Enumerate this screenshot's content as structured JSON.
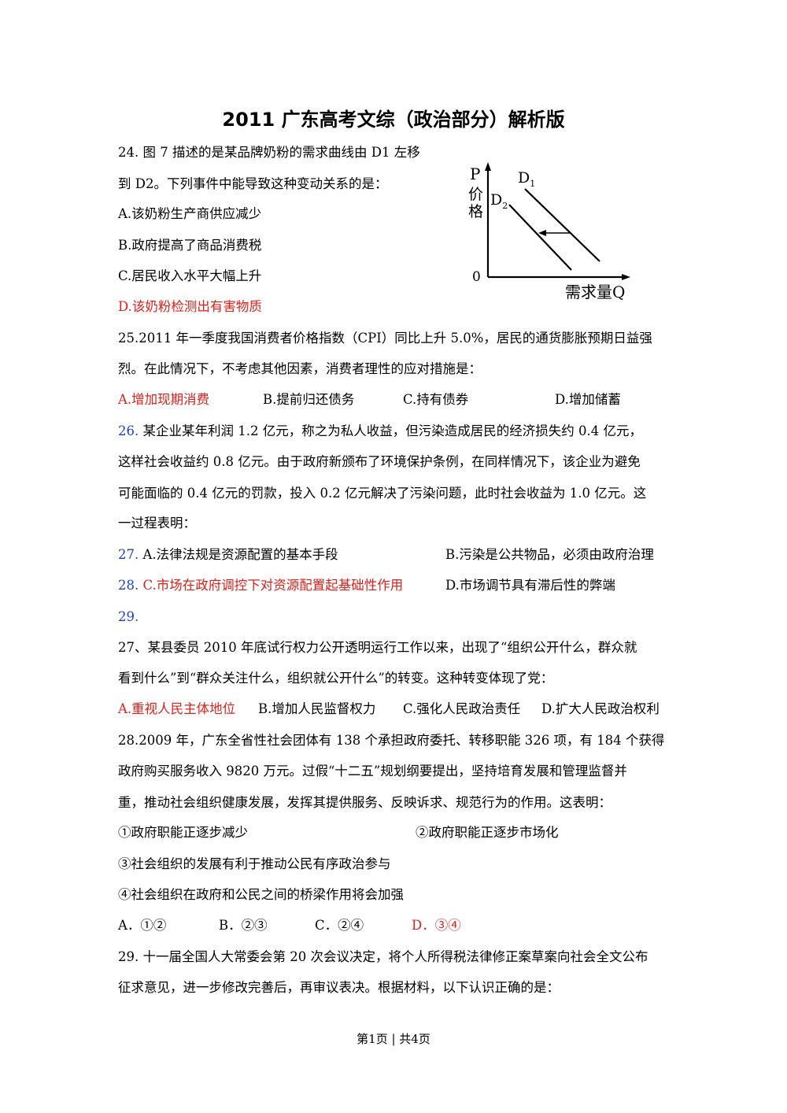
{
  "title": "2011 广东高考文综（政治部分）解析版",
  "q24": {
    "stem1": "24.   图 7 描述的是某品牌奶粉的需求曲线由 D1 左移",
    "stem2": "到 D2。下列事件中能导致这种变动关系的是：",
    "a": "A.该奶粉生产商供应减少",
    "b": "B.政府提高了商品消费税",
    "c": "C.居民收入水平大幅上升",
    "d": "D.该奶粉检测出有害物质"
  },
  "figure": {
    "p_label": "P",
    "price1": "价",
    "price2": "格",
    "origin": "0",
    "d1": "D",
    "d1_sub": "1",
    "d2": "D",
    "d2_sub": "2",
    "x_label": "需求量Q"
  },
  "q25": {
    "stem1": "25.2011 年一季度我国消费者价格指数（CPI）同比上升 5.0%，居民的通货膨胀预期日益强",
    "stem2": "烈。在此情况下，不考虑其他因素，消费者理性的应对措施是：",
    "a": "A.增加现期消费",
    "b": "B.提前归还债务",
    "c": "C.持有债券",
    "d": "D.增加储蓄"
  },
  "q26": {
    "num": "26.",
    "stem1": " 某企业某年利润 1.2 亿元，称之为私人收益，但污染造成居民的经济损失约 0.4 亿元，",
    "stem2": "这样社会收益约 0.8 亿元。由于政府新颁布了环境保护条例，在同样情况下，该企业为避免",
    "stem3": "可能面临的 0.4 亿元的罚款，投入 0.2 亿元解决了污染问题，此时社会收益为 1.0 亿元。这",
    "stem4": "一过程表明：",
    "num27": "27.",
    "a": " A.法律法规是资源配置的基本手段",
    "b": "B.污染是公共物品，必须由政府治理",
    "num28": "28.",
    "c": " C.市场在政府调控下对资源配置起基础性作用",
    "d": "D.市场调节具有滞后性的弊端",
    "num29": "29."
  },
  "q27": {
    "stem1": "27、某县委员 2010 年底试行权力公开透明运行工作以来，出现了“组织公开什么，群众就",
    "stem2": "看到什么”到“群众关注什么，组织就公开什么”的转变。这种转变体现了党：",
    "a": "A.重视人民主体地位",
    "b": "B.增加人民监督权力",
    "c": "C.强化人民政治责任",
    "d": "D.扩大人民政治权利"
  },
  "q28": {
    "stem1": "28.2009 年，广东全省性社会团体有 138 个承担政府委托、转移职能 326 项，有 184 个获得",
    "stem2": "政府购买服务收入 9820 万元。过假“十二五”规划纲要提出，坚持培育发展和管理监督并",
    "stem3": "重，推动社会组织健康发展，发挥其提供服务、反映诉求、规范行为的作用。这表明：",
    "o1": "①政府职能正逐步减少",
    "o2": "②政府职能正逐步市场化",
    "o3": "③社会组织的发展有利于推动公民有序政治参与",
    "o4": "④社会组织在政府和公民之间的桥梁作用将会加强",
    "a": "A．①②",
    "b": "B．②③",
    "c": "C．②④",
    "d": "D．③④"
  },
  "q29": {
    "stem1": "29. 十一届全国人大常委会第 20 次会议决定，将个人所得税法律修正案草案向社会全文公布",
    "stem2": "征求意见，进一步修改完善后，再审议表决。根据材料，以下认识正确的是："
  },
  "footer": "第1页 | 共4页",
  "colors": {
    "answer": "#e0201a",
    "number": "#1f3fd0"
  }
}
